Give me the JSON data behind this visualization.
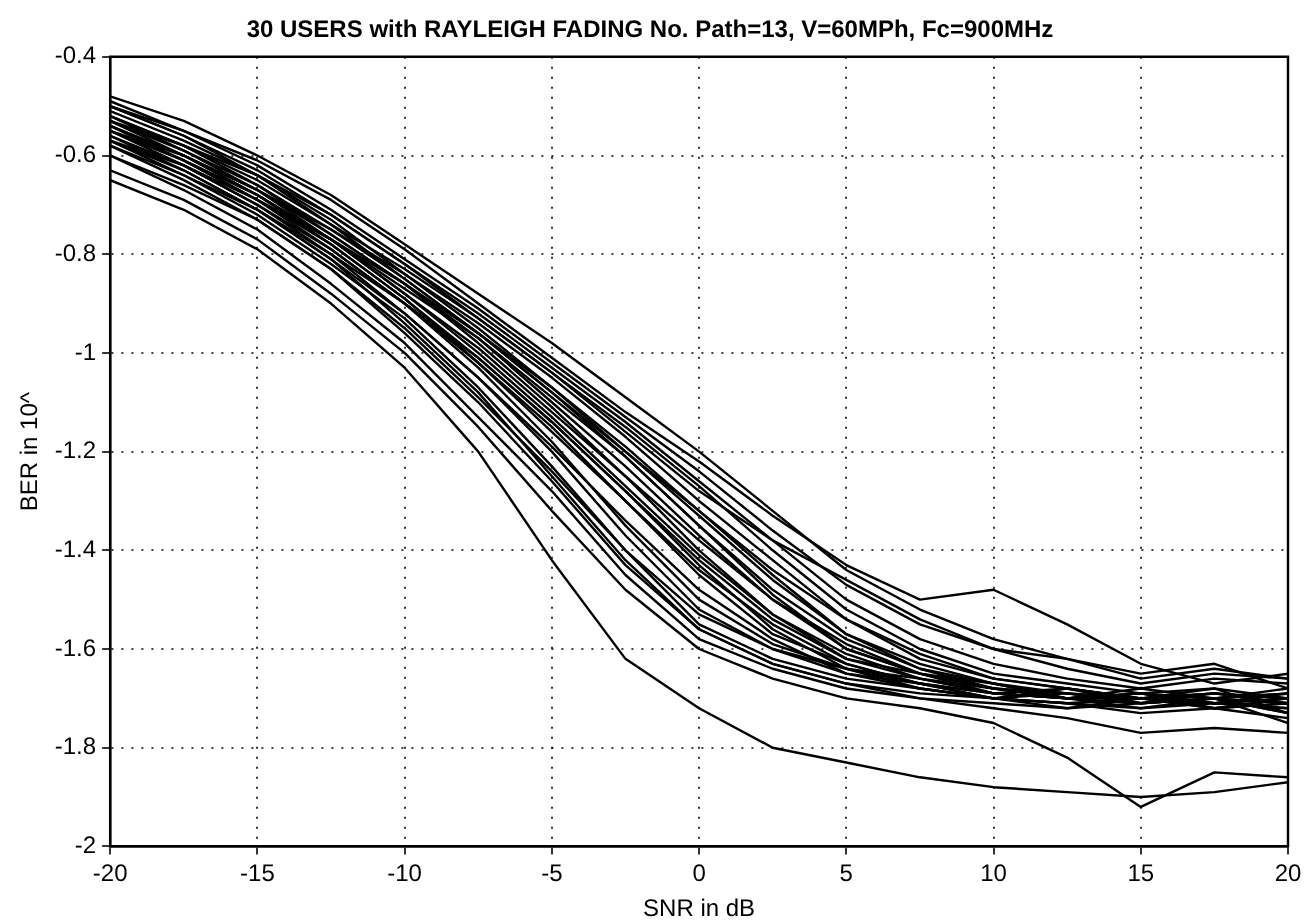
{
  "chart_data": {
    "type": "line",
    "title": "30 USERS with RAYLEIGH FADING No. Path=13, V=60MPh, Fc=900MHz",
    "xlabel": "SNR in dB",
    "ylabel": "BER in 10^",
    "x": [
      -20,
      -17.5,
      -15,
      -12.5,
      -10,
      -7.5,
      -5,
      -2.5,
      0,
      2.5,
      5,
      7.5,
      10,
      12.5,
      15,
      17.5,
      20
    ],
    "xlim": [
      -20,
      20
    ],
    "xticks": [
      -20,
      -15,
      -10,
      -5,
      0,
      5,
      10,
      15,
      20
    ],
    "ylim": [
      -2,
      -0.4
    ],
    "yticks": [
      -2,
      -1.8,
      -1.6,
      -1.4,
      -1.2,
      -1,
      -0.8,
      -0.6,
      -0.4
    ],
    "grid": true,
    "legend": false,
    "line_style": "solid",
    "series": [
      {
        "color": "#000000",
        "values": [
          -0.65,
          -0.71,
          -0.79,
          -0.9,
          -1.03,
          -1.2,
          -1.42,
          -1.62,
          -1.72,
          -1.8,
          -1.83,
          -1.86,
          -1.88,
          -1.89,
          -1.9,
          -1.89,
          -1.87
        ]
      },
      {
        "color": "#000000",
        "values": [
          -0.63,
          -0.69,
          -0.77,
          -0.88,
          -1.0,
          -1.15,
          -1.32,
          -1.48,
          -1.6,
          -1.66,
          -1.7,
          -1.72,
          -1.75,
          -1.82,
          -1.92,
          -1.85,
          -1.86
        ]
      },
      {
        "color": "#000000",
        "values": [
          -0.6,
          -0.67,
          -0.75,
          -0.86,
          -0.98,
          -1.13,
          -1.28,
          -1.45,
          -1.58,
          -1.64,
          -1.68,
          -1.7,
          -1.72,
          -1.74,
          -1.77,
          -1.76,
          -1.77
        ]
      },
      {
        "color": "#000000",
        "values": [
          -0.57,
          -0.64,
          -0.72,
          -0.82,
          -0.93,
          -1.07,
          -1.23,
          -1.4,
          -1.55,
          -1.62,
          -1.66,
          -1.68,
          -1.7,
          -1.71,
          -1.72,
          -1.71,
          -1.72
        ]
      },
      {
        "color": "#000000",
        "values": [
          -0.55,
          -0.62,
          -0.7,
          -0.8,
          -0.92,
          -1.05,
          -1.2,
          -1.37,
          -1.52,
          -1.6,
          -1.65,
          -1.67,
          -1.69,
          -1.7,
          -1.7,
          -1.72,
          -1.71
        ]
      },
      {
        "color": "#000000",
        "values": [
          -0.56,
          -0.63,
          -0.71,
          -0.81,
          -0.94,
          -1.08,
          -1.25,
          -1.42,
          -1.56,
          -1.63,
          -1.67,
          -1.69,
          -1.7,
          -1.69,
          -1.71,
          -1.7,
          -1.73
        ]
      },
      {
        "color": "#000000",
        "values": [
          -0.54,
          -0.61,
          -0.69,
          -0.79,
          -0.9,
          -1.03,
          -1.18,
          -1.35,
          -1.5,
          -1.59,
          -1.64,
          -1.66,
          -1.68,
          -1.7,
          -1.69,
          -1.71,
          -1.7
        ]
      },
      {
        "color": "#000000",
        "values": [
          -0.53,
          -0.6,
          -0.68,
          -0.78,
          -0.89,
          -1.02,
          -1.16,
          -1.3,
          -1.45,
          -1.57,
          -1.63,
          -1.67,
          -1.7,
          -1.68,
          -1.7,
          -1.69,
          -1.7
        ]
      },
      {
        "color": "#000000",
        "values": [
          -0.52,
          -0.59,
          -0.67,
          -0.77,
          -0.88,
          -0.99,
          -1.12,
          -1.25,
          -1.4,
          -1.53,
          -1.62,
          -1.66,
          -1.69,
          -1.7,
          -1.68,
          -1.7,
          -1.69
        ]
      },
      {
        "color": "#000000",
        "values": [
          -0.55,
          -0.61,
          -0.68,
          -0.77,
          -0.87,
          -0.97,
          -1.09,
          -1.21,
          -1.35,
          -1.49,
          -1.6,
          -1.65,
          -1.68,
          -1.69,
          -1.71,
          -1.69,
          -1.7
        ]
      },
      {
        "color": "#000000",
        "values": [
          -0.57,
          -0.62,
          -0.69,
          -0.77,
          -0.86,
          -0.96,
          -1.07,
          -1.19,
          -1.32,
          -1.45,
          -1.57,
          -1.64,
          -1.67,
          -1.7,
          -1.69,
          -1.7,
          -1.68
        ]
      },
      {
        "color": "#000000",
        "values": [
          -0.54,
          -0.6,
          -0.67,
          -0.75,
          -0.84,
          -0.94,
          -1.05,
          -1.17,
          -1.3,
          -1.42,
          -1.54,
          -1.62,
          -1.66,
          -1.68,
          -1.7,
          -1.71,
          -1.69
        ]
      },
      {
        "color": "#000000",
        "values": [
          -0.52,
          -0.58,
          -0.65,
          -0.74,
          -0.83,
          -0.93,
          -1.04,
          -1.15,
          -1.27,
          -1.4,
          -1.52,
          -1.6,
          -1.65,
          -1.67,
          -1.69,
          -1.68,
          -1.7
        ]
      },
      {
        "color": "#000000",
        "values": [
          -0.5,
          -0.56,
          -0.63,
          -0.72,
          -0.82,
          -0.92,
          -1.03,
          -1.14,
          -1.26,
          -1.38,
          -1.5,
          -1.58,
          -1.63,
          -1.66,
          -1.68,
          -1.66,
          -1.67
        ]
      },
      {
        "color": "#000000",
        "values": [
          -0.49,
          -0.55,
          -0.62,
          -0.71,
          -0.81,
          -0.91,
          -1.02,
          -1.13,
          -1.24,
          -1.36,
          -1.47,
          -1.55,
          -1.6,
          -1.64,
          -1.67,
          -1.65,
          -1.66
        ]
      },
      {
        "color": "#000000",
        "values": [
          -0.48,
          -0.53,
          -0.6,
          -0.68,
          -0.78,
          -0.88,
          -0.98,
          -1.09,
          -1.2,
          -1.32,
          -1.44,
          -1.52,
          -1.58,
          -1.62,
          -1.66,
          -1.64,
          -1.66
        ]
      },
      {
        "color": "#000000",
        "values": [
          -0.5,
          -0.55,
          -0.61,
          -0.69,
          -0.79,
          -0.9,
          -1.01,
          -1.12,
          -1.22,
          -1.33,
          -1.43,
          -1.5,
          -1.48,
          -1.55,
          -1.63,
          -1.67,
          -1.65
        ]
      },
      {
        "color": "#000000",
        "values": [
          -0.53,
          -0.58,
          -0.64,
          -0.72,
          -0.82,
          -0.93,
          -1.04,
          -1.16,
          -1.28,
          -1.38,
          -1.46,
          -1.54,
          -1.6,
          -1.62,
          -1.65,
          -1.63,
          -1.68
        ]
      },
      {
        "color": "#000000",
        "values": [
          -0.58,
          -0.64,
          -0.71,
          -0.8,
          -0.9,
          -1.01,
          -1.14,
          -1.28,
          -1.42,
          -1.54,
          -1.62,
          -1.65,
          -1.67,
          -1.7,
          -1.69,
          -1.72,
          -1.7
        ]
      },
      {
        "color": "#000000",
        "values": [
          -0.6,
          -0.66,
          -0.73,
          -0.83,
          -0.95,
          -1.09,
          -1.24,
          -1.4,
          -1.53,
          -1.6,
          -1.64,
          -1.67,
          -1.69,
          -1.68,
          -1.71,
          -1.7,
          -1.75
        ]
      },
      {
        "color": "#000000",
        "values": [
          -0.56,
          -0.62,
          -0.7,
          -0.79,
          -0.9,
          -1.02,
          -1.15,
          -1.3,
          -1.44,
          -1.55,
          -1.63,
          -1.67,
          -1.7,
          -1.71,
          -1.7,
          -1.69,
          -1.71
        ]
      },
      {
        "color": "#000000",
        "values": [
          -0.54,
          -0.6,
          -0.68,
          -0.77,
          -0.88,
          -1.0,
          -1.13,
          -1.27,
          -1.41,
          -1.53,
          -1.61,
          -1.66,
          -1.69,
          -1.7,
          -1.72,
          -1.7,
          -1.71
        ]
      },
      {
        "color": "#000000",
        "values": [
          -0.51,
          -0.57,
          -0.64,
          -0.73,
          -0.84,
          -0.95,
          -1.07,
          -1.2,
          -1.33,
          -1.46,
          -1.57,
          -1.63,
          -1.67,
          -1.69,
          -1.7,
          -1.71,
          -1.7
        ]
      },
      {
        "color": "#000000",
        "values": [
          -0.55,
          -0.61,
          -0.69,
          -0.78,
          -0.89,
          -1.01,
          -1.14,
          -1.28,
          -1.43,
          -1.56,
          -1.64,
          -1.68,
          -1.7,
          -1.71,
          -1.73,
          -1.72,
          -1.74
        ]
      },
      {
        "color": "#000000",
        "values": [
          -0.53,
          -0.59,
          -0.66,
          -0.75,
          -0.85,
          -0.96,
          -1.08,
          -1.21,
          -1.35,
          -1.48,
          -1.58,
          -1.64,
          -1.68,
          -1.69,
          -1.7,
          -1.68,
          -1.73
        ]
      },
      {
        "color": "#000000",
        "values": [
          -0.57,
          -0.63,
          -0.71,
          -0.81,
          -0.92,
          -1.05,
          -1.19,
          -1.34,
          -1.48,
          -1.58,
          -1.65,
          -1.68,
          -1.7,
          -1.72,
          -1.71,
          -1.7,
          -1.73
        ]
      },
      {
        "color": "#000000",
        "values": [
          -0.52,
          -0.58,
          -0.66,
          -0.76,
          -0.86,
          -0.97,
          -1.1,
          -1.23,
          -1.37,
          -1.5,
          -1.6,
          -1.65,
          -1.68,
          -1.7,
          -1.69,
          -1.71,
          -1.72
        ]
      },
      {
        "color": "#000000",
        "values": [
          -0.5,
          -0.56,
          -0.64,
          -0.74,
          -0.85,
          -0.96,
          -1.08,
          -1.2,
          -1.32,
          -1.44,
          -1.54,
          -1.61,
          -1.66,
          -1.68,
          -1.7,
          -1.69,
          -1.71
        ]
      },
      {
        "color": "#000000",
        "values": [
          -0.55,
          -0.6,
          -0.67,
          -0.76,
          -0.86,
          -0.98,
          -1.11,
          -1.25,
          -1.38,
          -1.5,
          -1.59,
          -1.65,
          -1.69,
          -1.7,
          -1.71,
          -1.7,
          -1.69
        ]
      },
      {
        "color": "#000000",
        "values": [
          -0.58,
          -0.65,
          -0.73,
          -0.83,
          -0.96,
          -1.1,
          -1.26,
          -1.43,
          -1.56,
          -1.63,
          -1.67,
          -1.7,
          -1.71,
          -1.72,
          -1.7,
          -1.72,
          -1.71
        ]
      }
    ]
  }
}
